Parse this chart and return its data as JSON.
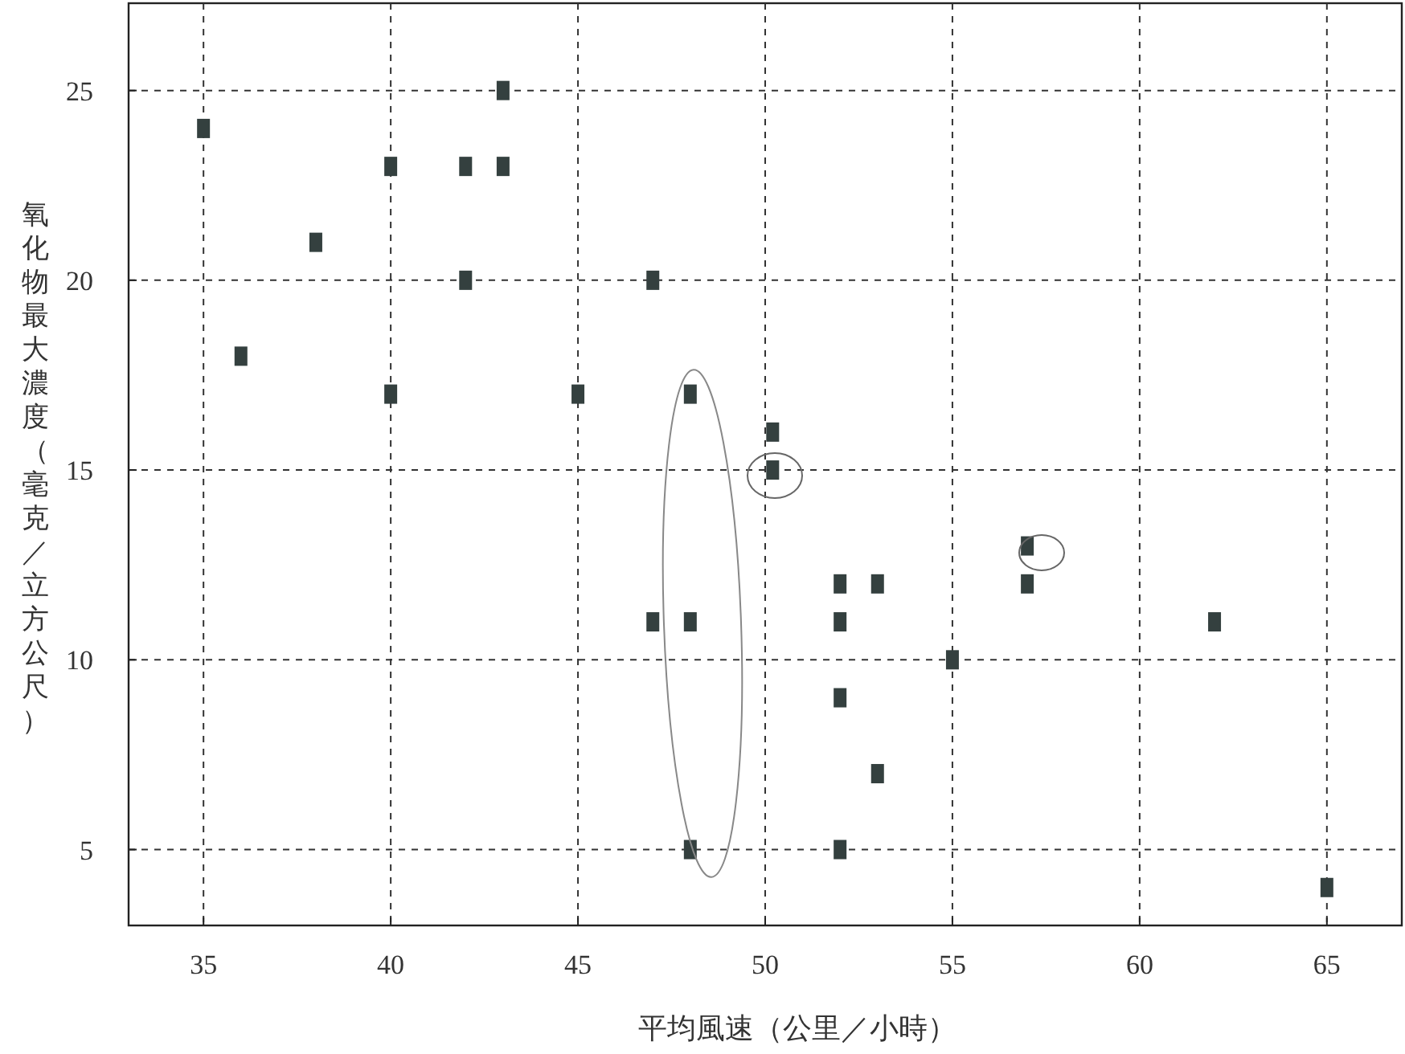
{
  "chart_data": {
    "type": "scatter",
    "xlabel": "平均風速（公里／小時）",
    "ylabel": "氧化物最大濃度（毫克／立方公尺）",
    "x": [
      35,
      36,
      38,
      40,
      40,
      42,
      42,
      43,
      43,
      45,
      47,
      47,
      48,
      48,
      48,
      50.2,
      50.2,
      52,
      52,
      52,
      52,
      53,
      53,
      55,
      57,
      57,
      62,
      65
    ],
    "series": [
      {
        "color": "#34403f",
        "values": [
          24,
          18,
          21,
          23,
          17,
          23,
          20,
          25,
          23,
          17,
          20,
          11,
          11,
          17,
          5,
          16,
          15,
          12,
          11,
          9,
          5,
          12,
          7,
          10,
          13,
          12,
          11,
          4
        ]
      }
    ],
    "xlim": [
      33,
      67
    ],
    "ylim": [
      3,
      27.3
    ],
    "xticks": [
      35,
      40,
      45,
      50,
      55,
      60,
      65
    ],
    "yticks": [
      5,
      10,
      15,
      20,
      25
    ],
    "grid": true,
    "marker": "square"
  }
}
